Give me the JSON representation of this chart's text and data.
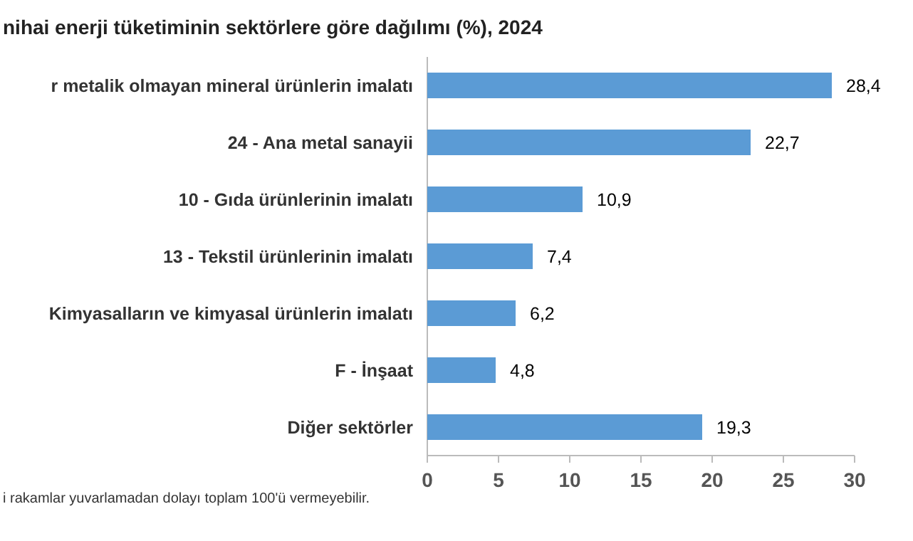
{
  "chart_data": {
    "type": "bar",
    "orientation": "horizontal",
    "title": "nihai enerji tüketiminin sektörlere göre dağılımı (%), 2024",
    "categories": [
      "r metalik olmayan mineral ürünlerin imalatı",
      "24 - Ana metal sanayii",
      "10 - Gıda ürünlerinin imalatı",
      "13 - Tekstil ürünlerinin imalatı",
      "Kimyasalların ve kimyasal ürünlerin imalatı",
      "F - İnşaat",
      "Diğer sektörler"
    ],
    "values": [
      28.4,
      22.7,
      10.9,
      7.4,
      6.2,
      4.8,
      19.3
    ],
    "value_labels": [
      "28,4",
      "22,7",
      "10,9",
      "7,4",
      "6,2",
      "4,8",
      "19,3"
    ],
    "color": "#5b9bd5",
    "xlim": [
      0,
      30
    ],
    "xticks": [
      0,
      5,
      10,
      15,
      20,
      25,
      30
    ],
    "grid": false,
    "annotations": [
      "i rakamlar yuvarlamadan dolayı toplam 100'ü vermeyebilir."
    ]
  }
}
